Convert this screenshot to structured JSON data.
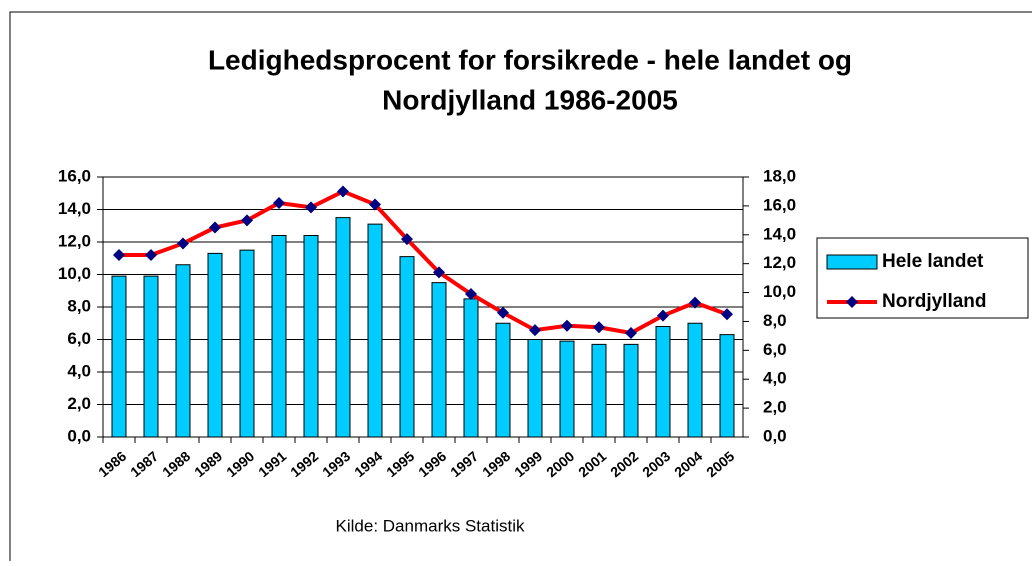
{
  "chart_data": {
    "type": "bar_line",
    "title": "Ledighedsprocent for forsikrede - hele landet og",
    "subtitle": "Nordjylland 1986-2005",
    "source": "Kilde: Danmarks Statistik",
    "categories": [
      "1986",
      "1987",
      "1988",
      "1989",
      "1990",
      "1991",
      "1992",
      "1993",
      "1994",
      "1995",
      "1996",
      "1997",
      "1998",
      "1999",
      "2000",
      "2001",
      "2002",
      "2003",
      "2004",
      "2005"
    ],
    "series": [
      {
        "name": "Hele landet",
        "type": "bar",
        "color": "#00ccff",
        "values": [
          9.9,
          9.9,
          10.6,
          11.3,
          11.5,
          12.4,
          12.4,
          13.5,
          13.1,
          11.1,
          9.5,
          8.5,
          7.0,
          6.0,
          5.9,
          5.7,
          5.7,
          6.8,
          7.0,
          6.3
        ]
      },
      {
        "name": "Nordjylland",
        "type": "line",
        "axis": "y2",
        "color": "#ff0000",
        "marker_color": "#000080",
        "values": [
          12.6,
          12.6,
          13.4,
          14.5,
          15.0,
          16.2,
          15.9,
          17.0,
          16.1,
          13.7,
          11.4,
          9.9,
          8.6,
          7.4,
          7.7,
          7.6,
          7.2,
          8.4,
          9.3,
          8.5
        ]
      }
    ],
    "ylim": [
      0,
      16
    ],
    "yticks": [
      {
        "value": 0,
        "label": "0,0"
      },
      {
        "value": 2,
        "label": "2,0"
      },
      {
        "value": 4,
        "label": "4,0"
      },
      {
        "value": 6,
        "label": "6,0"
      },
      {
        "value": 8,
        "label": "8,0"
      },
      {
        "value": 10,
        "label": "10,0"
      },
      {
        "value": 12,
        "label": "12,0"
      },
      {
        "value": 14,
        "label": "14,0"
      },
      {
        "value": 16,
        "label": "16,0"
      }
    ],
    "y2lim": [
      0,
      18
    ],
    "y2ticks": [
      {
        "value": 0,
        "label": "0,0"
      },
      {
        "value": 2,
        "label": "2,0"
      },
      {
        "value": 4,
        "label": "4,0"
      },
      {
        "value": 6,
        "label": "6,0"
      },
      {
        "value": 8,
        "label": "8,0"
      },
      {
        "value": 10,
        "label": "10,0"
      },
      {
        "value": 12,
        "label": "12,0"
      },
      {
        "value": 14,
        "label": "14,0"
      },
      {
        "value": 16,
        "label": "16,0"
      },
      {
        "value": 18,
        "label": "18,0"
      }
    ],
    "grid": true,
    "legend": "right"
  }
}
